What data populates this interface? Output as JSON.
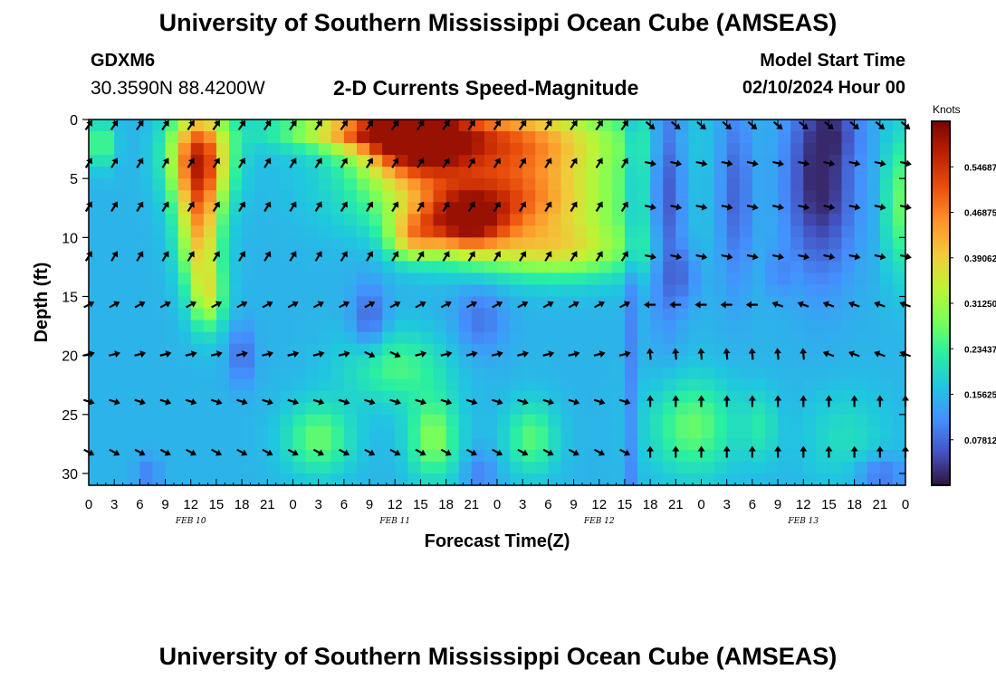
{
  "header": {
    "title": "University of Southern Mississippi Ocean Cube (AMSEAS)",
    "station": "GDXM6",
    "coords": "30.3590N  88.4200W",
    "subtitle": "2-D Currents Speed-Magnitude",
    "model_start_label": "Model Start Time",
    "model_start_value": "02/10/2024 Hour 00"
  },
  "footer": {
    "title": "University of Southern Mississippi Ocean Cube (AMSEAS)"
  },
  "chart_data": {
    "type": "heatmap",
    "title": "2-D Currents Speed-Magnitude",
    "xlabel": "Forecast Time(Z)",
    "ylabel": "Depth (ft)",
    "x_tick_labels": [
      "0",
      "3",
      "6",
      "9",
      "12",
      "15",
      "18",
      "21",
      "0",
      "3",
      "6",
      "9",
      "12",
      "15",
      "18",
      "21",
      "0",
      "3",
      "6",
      "9",
      "12",
      "15",
      "18",
      "21",
      "0",
      "3",
      "6",
      "9",
      "12",
      "15",
      "18",
      "21",
      "0"
    ],
    "x_range_hours": [
      0,
      96
    ],
    "date_labels": [
      {
        "hour": 12,
        "label": "FEB 10"
      },
      {
        "hour": 36,
        "label": "FEB 11"
      },
      {
        "hour": 60,
        "label": "FEB 12"
      },
      {
        "hour": 84,
        "label": "FEB 13"
      }
    ],
    "y_range_ft": [
      0,
      31
    ],
    "y_ticks": [
      0,
      5,
      10,
      15,
      20,
      25,
      30
    ],
    "colorbar": {
      "label": "Knots",
      "range": [
        0,
        0.625
      ],
      "ticks": [
        "0.07812",
        "0.15625",
        "0.23437",
        "0.31250",
        "0.39062",
        "0.46875",
        "0.54687"
      ],
      "colors": [
        "#30123b",
        "#4454c4",
        "#4490fe",
        "#1fc8de",
        "#29efa2",
        "#7dff56",
        "#c1f334",
        "#f1ca3a",
        "#fe922a",
        "#ea4f0d",
        "#be2102",
        "#7a0403"
      ]
    },
    "arrow_depths_ft": [
      0.5,
      3.7,
      7.4,
      11.6,
      15.7,
      19.9,
      23.9,
      28.2
    ],
    "arrow_hours": [
      0,
      3,
      6,
      9,
      12,
      15,
      18,
      21,
      24,
      27,
      30,
      33,
      36,
      39,
      42,
      45,
      48,
      51,
      54,
      57,
      60,
      63,
      66,
      69,
      72,
      75,
      78,
      81,
      84,
      87,
      90,
      93,
      96
    ],
    "speed_features": [
      {
        "t": 13,
        "z": 3,
        "st": 3.5,
        "sz": 4,
        "v": 0.36
      },
      {
        "t": 13,
        "z": 9,
        "st": 2.5,
        "sz": 5,
        "v": 0.26
      },
      {
        "t": 14,
        "z": 15,
        "st": 2.0,
        "sz": 3,
        "v": 0.16
      },
      {
        "t": 1.5,
        "z": 2,
        "st": 1.5,
        "sz": 2,
        "v": 0.12
      },
      {
        "t": 33,
        "z": 1,
        "st": 10,
        "sz": 1.5,
        "v": 0.24
      },
      {
        "t": 38,
        "z": 2,
        "st": 6,
        "sz": 3,
        "v": 0.3
      },
      {
        "t": 48,
        "z": 2,
        "st": 14,
        "sz": 3.5,
        "v": 0.34
      },
      {
        "t": 48,
        "z": 7,
        "st": 13,
        "sz": 3,
        "v": 0.3
      },
      {
        "t": 38,
        "z": 10,
        "st": 3,
        "sz": 2,
        "v": 0.18
      },
      {
        "t": 44,
        "z": 9,
        "st": 5,
        "sz": 2.5,
        "v": 0.28
      },
      {
        "t": 55,
        "z": 11,
        "st": 10,
        "sz": 2.5,
        "v": 0.2
      },
      {
        "t": 33,
        "z": 17,
        "st": 2,
        "sz": 3,
        "v": -0.08
      },
      {
        "t": 46,
        "z": 17,
        "st": 3,
        "sz": 3,
        "v": -0.06
      },
      {
        "t": 18,
        "z": 20,
        "st": 1.5,
        "sz": 2.5,
        "v": -0.07
      },
      {
        "t": 36,
        "z": 21,
        "st": 6,
        "sz": 3,
        "v": 0.1
      },
      {
        "t": 27,
        "z": 27,
        "st": 4,
        "sz": 3,
        "v": 0.12
      },
      {
        "t": 40.5,
        "z": 27,
        "st": 3,
        "sz": 3.5,
        "v": 0.14
      },
      {
        "t": 52,
        "z": 27,
        "st": 3,
        "sz": 3,
        "v": 0.11
      },
      {
        "t": 7,
        "z": 30,
        "st": 1.5,
        "sz": 1.5,
        "v": -0.05
      },
      {
        "t": 46,
        "z": 30,
        "st": 2,
        "sz": 2,
        "v": -0.05
      },
      {
        "t": 68,
        "z": 6,
        "st": 2,
        "sz": 10,
        "v": -0.12
      },
      {
        "t": 70,
        "z": 13,
        "st": 2,
        "sz": 2.5,
        "v": -0.05
      },
      {
        "t": 76,
        "z": 6,
        "st": 2,
        "sz": 8,
        "v": -0.08
      },
      {
        "t": 81,
        "z": 13,
        "st": 1.2,
        "sz": 2,
        "v": -0.04
      },
      {
        "t": 86,
        "z": 5,
        "st": 4,
        "sz": 8,
        "v": -0.14
      },
      {
        "t": 88,
        "z": 1,
        "st": 3,
        "sz": 2,
        "v": -0.04
      },
      {
        "t": 95,
        "z": 7,
        "st": 1.5,
        "sz": 6,
        "v": 0.12
      },
      {
        "t": 71,
        "z": 26,
        "st": 5,
        "sz": 4,
        "v": 0.12
      },
      {
        "t": 79,
        "z": 26,
        "st": 2,
        "sz": 3,
        "v": 0.06
      },
      {
        "t": 89,
        "z": 27,
        "st": 5,
        "sz": 4,
        "v": 0.05
      },
      {
        "t": 93,
        "z": 30,
        "st": 3,
        "sz": 1.5,
        "v": -0.07
      }
    ]
  }
}
